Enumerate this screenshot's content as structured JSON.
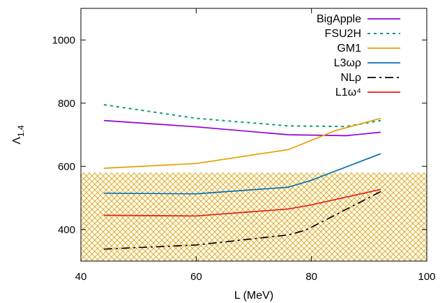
{
  "chart_data": {
    "type": "line",
    "xlabel": "L  (MeV)",
    "ylabel_main": "Λ",
    "ylabel_sub": "1.4",
    "xlim": [
      40,
      100
    ],
    "ylim": [
      300,
      1100
    ],
    "xticks": [
      40,
      60,
      80,
      100
    ],
    "yticks": [
      400,
      600,
      800,
      1000
    ],
    "grid": false,
    "legend_position": "top-right",
    "constraint_band": {
      "y_min": 300,
      "y_max": 580,
      "fill": "crosshatch",
      "color": "#e69f00"
    },
    "series": [
      {
        "name": "BigApple",
        "color": "#9400d3",
        "dash": "solid",
        "x": [
          44,
          60,
          76,
          86,
          92
        ],
        "y": [
          745,
          725,
          700,
          697,
          708
        ]
      },
      {
        "name": "FSU2H",
        "color": "#009e73",
        "dash": "dotted",
        "x": [
          44,
          60,
          76,
          86,
          92
        ],
        "y": [
          795,
          752,
          728,
          726,
          745
        ]
      },
      {
        "name": "GM1",
        "color": "#e69f00",
        "dash": "solid",
        "x": [
          44,
          60,
          76,
          84,
          92
        ],
        "y": [
          594,
          609,
          653,
          712,
          752
        ]
      },
      {
        "name": "L3ωρ",
        "color": "#0072b2",
        "dash": "solid",
        "x": [
          44,
          60,
          76,
          80,
          92
        ],
        "y": [
          515,
          513,
          534,
          556,
          640
        ]
      },
      {
        "name": "NLρ",
        "color": "#000000",
        "dash": "dashdot",
        "x": [
          44,
          60,
          76,
          79,
          92
        ],
        "y": [
          338,
          351,
          383,
          398,
          520
        ]
      },
      {
        "name": "L1ω⁴",
        "color": "#e51e10",
        "dash": "solid",
        "x": [
          44,
          60,
          76,
          80,
          92
        ],
        "y": [
          445,
          443,
          465,
          478,
          527
        ]
      }
    ]
  }
}
